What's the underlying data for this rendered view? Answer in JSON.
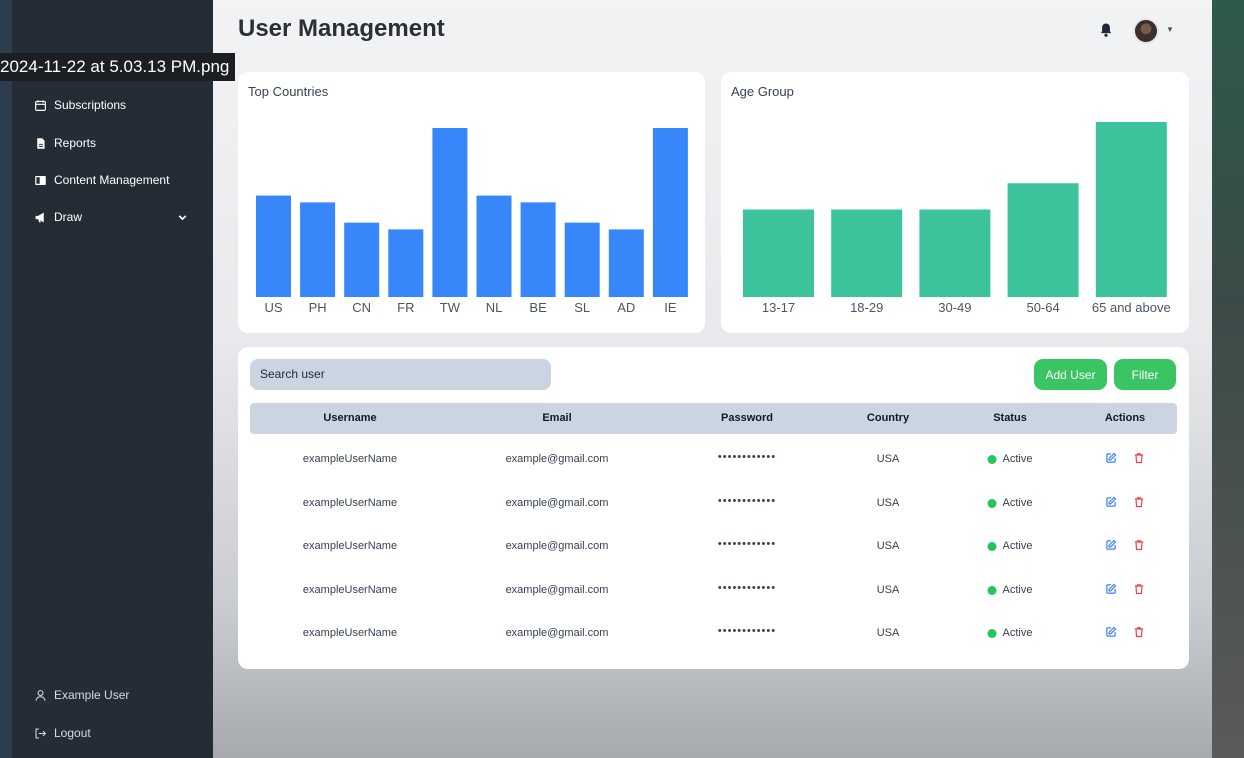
{
  "window_title": "2024-11-22 at 5.03.13 PM.png",
  "sidebar": {
    "items": [
      {
        "label": "Subscriptions",
        "icon": "calendar-icon"
      },
      {
        "label": "Reports",
        "icon": "document-icon"
      },
      {
        "label": "Content Management",
        "icon": "layout-icon"
      },
      {
        "label": "Draw",
        "icon": "megaphone-icon"
      }
    ],
    "footer": [
      {
        "label": "Example User",
        "icon": "user-icon"
      },
      {
        "label": "Logout",
        "icon": "logout-icon"
      }
    ]
  },
  "header": {
    "title": "User Management",
    "bell_icon": "bell-icon",
    "avatar_icon": "avatar"
  },
  "colors": {
    "country_bar": "#3787fb",
    "age_bar": "#3cc39b",
    "button_green": "#3ac463",
    "status_active": "#22c55e",
    "edit_blue": "#3b82f6",
    "delete_red": "#ef4444"
  },
  "chart_data": [
    {
      "type": "bar",
      "title": "Top Countries",
      "categories": [
        "US",
        "PH",
        "CN",
        "FR",
        "TW",
        "NL",
        "BE",
        "SL",
        "AD",
        "IE"
      ],
      "values": [
        60,
        56,
        44,
        40,
        100,
        60,
        56,
        44,
        40,
        100
      ],
      "ylim": [
        0,
        100
      ],
      "grid": false,
      "legend": "none"
    },
    {
      "type": "bar",
      "title": "Age Group",
      "categories": [
        "13-17",
        "18-29",
        "30-49",
        "50-64",
        "65 and above"
      ],
      "values": [
        50,
        50,
        50,
        65,
        100
      ],
      "ylim": [
        0,
        100
      ],
      "grid": false,
      "legend": "none"
    }
  ],
  "users": {
    "search_placeholder": "Search user",
    "add_button": "Add User",
    "filter_button": "Filter",
    "columns": [
      "Username",
      "Email",
      "Password",
      "Country",
      "Status",
      "Actions"
    ],
    "rows": [
      {
        "username": "exampleUserName",
        "email": "example@gmail.com",
        "password": "••••••••••••",
        "country": "USA",
        "status": "Active"
      },
      {
        "username": "exampleUserName",
        "email": "example@gmail.com",
        "password": "••••••••••••",
        "country": "USA",
        "status": "Active"
      },
      {
        "username": "exampleUserName",
        "email": "example@gmail.com",
        "password": "••••••••••••",
        "country": "USA",
        "status": "Active"
      },
      {
        "username": "exampleUserName",
        "email": "example@gmail.com",
        "password": "••••••••••••",
        "country": "USA",
        "status": "Active"
      },
      {
        "username": "exampleUserName",
        "email": "example@gmail.com",
        "password": "••••••••••••",
        "country": "USA",
        "status": "Active"
      }
    ]
  }
}
